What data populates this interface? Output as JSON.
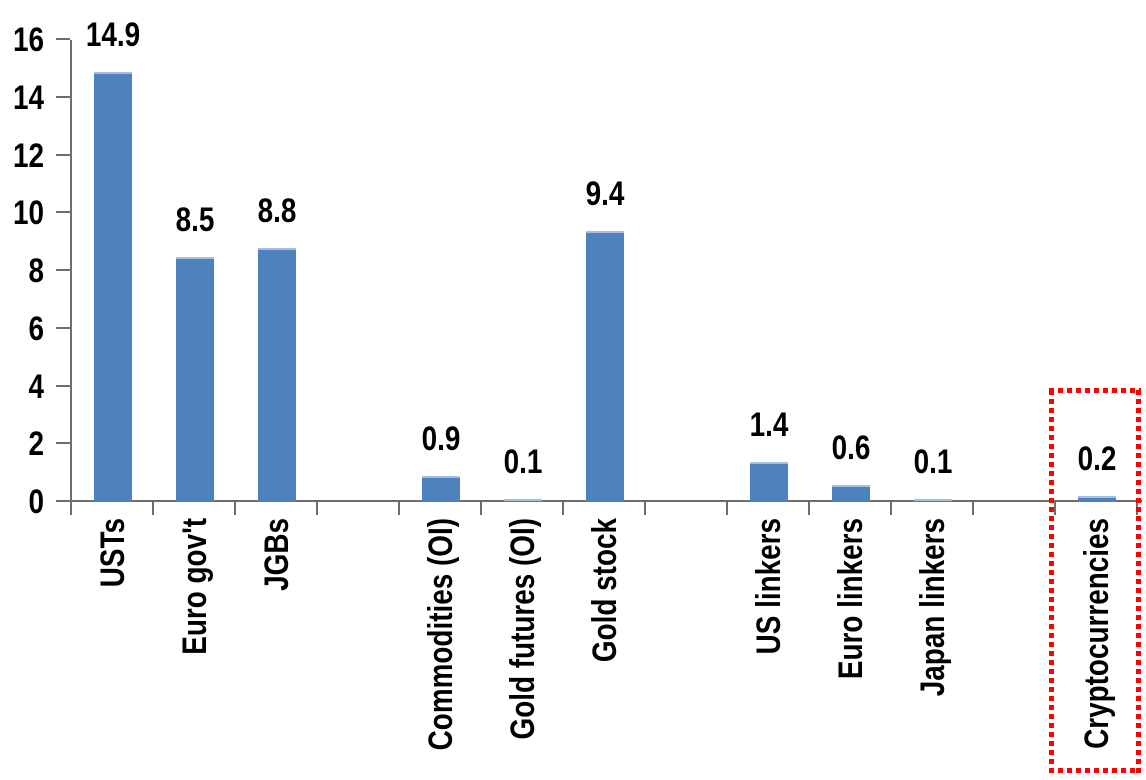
{
  "chart_data": {
    "type": "bar",
    "title": "",
    "xlabel": "",
    "ylabel": "",
    "categories": [
      "USTs",
      "Euro gov't",
      "JGBs",
      "",
      "Commodities (OI)",
      "Gold futures (OI)",
      "Gold stock",
      "",
      "US linkers",
      "Euro linkers",
      "Japan linkers",
      "",
      "Cryptocurrencies"
    ],
    "values": [
      14.9,
      8.5,
      8.8,
      null,
      0.9,
      0.1,
      9.4,
      null,
      1.4,
      0.6,
      0.1,
      null,
      0.2
    ],
    "data_labels": [
      "14.9",
      "8.5",
      "8.8",
      "",
      "0.9",
      "0.1",
      "9.4",
      "",
      "1.4",
      "0.6",
      "0.1",
      "",
      "0.2"
    ],
    "ylim": [
      0,
      16
    ],
    "yticks": [
      0,
      2,
      4,
      6,
      8,
      10,
      12,
      14,
      16
    ],
    "grid": false,
    "legend": false,
    "bar_color": "#4f81bd",
    "bar_top_edge_color": "#a4c0dd",
    "axis_color": "#6e6e6e",
    "text_color": "#000000",
    "highlight_box": {
      "target": "Cryptocurrencies",
      "style": "square-dotted",
      "border_color": "#ff0000"
    }
  }
}
